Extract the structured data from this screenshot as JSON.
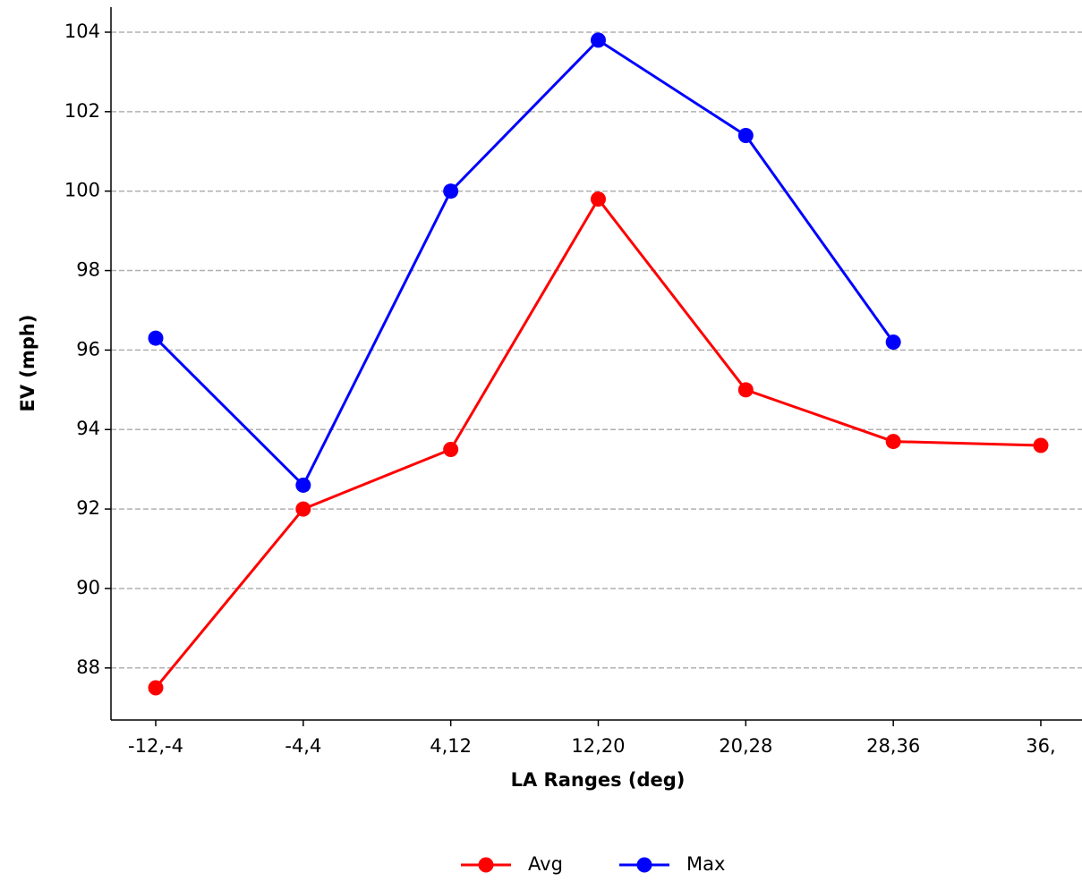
{
  "chart_data": {
    "type": "line",
    "x_label": "LA Ranges (deg)",
    "y_label": "EV (mph)",
    "categories": [
      "-12,-4",
      "-4,4",
      "4,12",
      "12,20",
      "20,28",
      "28,36",
      "36,"
    ],
    "series": [
      {
        "name": "Avg",
        "color": "#ff0000",
        "values": [
          87.5,
          92.0,
          93.5,
          99.8,
          95.0,
          93.7,
          93.6
        ]
      },
      {
        "name": "Max",
        "color": "#0000ff",
        "values": [
          96.3,
          92.6,
          100.0,
          103.8,
          101.4,
          96.2,
          null
        ]
      }
    ],
    "ylim": [
      86.69,
      104.63
    ],
    "yticks": [
      88,
      90,
      92,
      94,
      96,
      98,
      100,
      102,
      104
    ],
    "grid": true,
    "legend": "bottom"
  }
}
